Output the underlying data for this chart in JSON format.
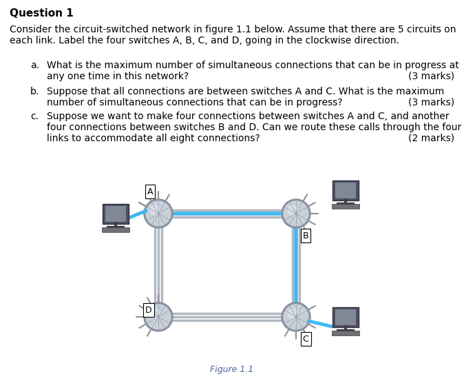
{
  "title": "Question 1",
  "body_text1": "Consider the circuit-switched network in figure 1.1 below. Assume that there are 5 circuits on",
  "body_text2": "each link. Label the four switches A, B, C, and D, going in the clockwise direction.",
  "questions": [
    {
      "label": "a.",
      "lines": [
        "What is the maximum number of simultaneous connections that can be in progress at",
        "any one time in this network?"
      ],
      "marks": "(3 marks)",
      "marks_line": 1
    },
    {
      "label": "b.",
      "lines": [
        "Suppose that all connections are between switches A and C. What is the maximum",
        "number of simultaneous connections that can be in progress?"
      ],
      "marks": "(3 marks)",
      "marks_line": 1
    },
    {
      "label": "c.",
      "lines": [
        "Suppose we want to make four connections between switches A and C, and another",
        "four connections between switches B and D. Can we route these calls through the four",
        "links to accommodate all eight connections?"
      ],
      "marks": "(2 marks)",
      "marks_line": 2
    }
  ],
  "figure_caption": "Figure 1.1",
  "highlight_color": "#40b8f0",
  "link_color": "#b0b8c0",
  "node_color_light": "#c8d0d8",
  "node_color_dark": "#8890a0",
  "background_color": "#ffffff",
  "text_color": "#000000",
  "marks_color": "#000000",
  "caption_color": "#5060a0"
}
